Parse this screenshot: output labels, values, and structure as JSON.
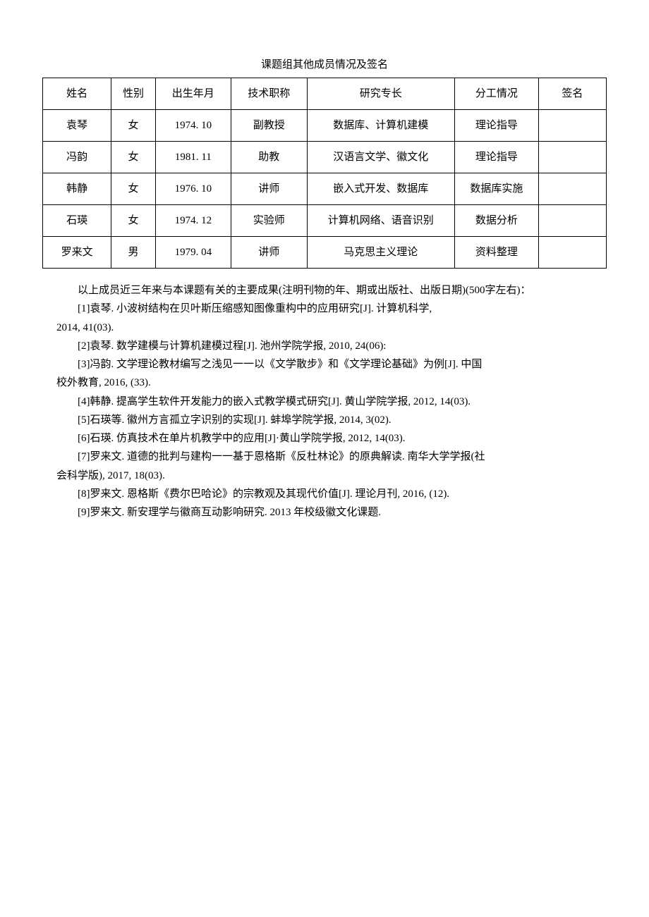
{
  "title": "课题组其他成员情况及签名",
  "table": {
    "headers": [
      "姓名",
      "性别",
      "出生年月",
      "技术职称",
      "研究专长",
      "分工情况",
      "签名"
    ],
    "rows": [
      [
        "袁琴",
        "女",
        "1974. 10",
        "副教授",
        "数据库、计算机建模",
        "理论指导",
        ""
      ],
      [
        "冯韵",
        "女",
        "1981. 11",
        "助教",
        "汉语言文学、徽文化",
        "理论指导",
        ""
      ],
      [
        "韩静",
        "女",
        "1976. 10",
        "讲师",
        "嵌入式开发、数据库",
        "数据库实施",
        ""
      ],
      [
        "石瑛",
        "女",
        "1974. 12",
        "实验师",
        "计算机网络、语音识别",
        "数据分析",
        ""
      ],
      [
        "罗来文",
        "男",
        "1979. 04",
        "讲师",
        "马克思主义理论",
        "资料整理",
        ""
      ]
    ]
  },
  "intro": "以上成员近三年来与本课题有关的主要成果(注明刊物的年、期或出版社、出版日期)(500字左右)：",
  "refs": [
    {
      "indented": true,
      "text": "[1]袁琴. 小波树结构在贝叶斯压缩感知图像重构中的应用研究[J]. 计算机科学,"
    },
    {
      "indented": false,
      "text": "2014, 41(03)."
    },
    {
      "indented": true,
      "text": "[2]袁琴. 数学建模与计算机建模过程[J]. 池州学院学报, 2010, 24(06):"
    },
    {
      "indented": true,
      "text": "[3]冯韵. 文学理论教材编写之浅见一一以《文学散步》和《文学理论基础》为例[J]. 中国"
    },
    {
      "indented": false,
      "text": "校外教育, 2016, (33)."
    },
    {
      "indented": true,
      "text": "[4]韩静. 提高学生软件开发能力的嵌入式教学模式研究[J]. 黄山学院学报, 2012, 14(03)."
    },
    {
      "indented": true,
      "text": "[5]石瑛等. 徽州方言孤立字识别的实现[J]. 蚌埠学院学报, 2014, 3(02)."
    },
    {
      "indented": true,
      "text": "[6]石瑛. 仿真技术在单片机教学中的应用[J]·黄山学院学报, 2012, 14(03)."
    },
    {
      "indented": true,
      "text": "[7]罗来文. 道德的批判与建构一一基于恩格斯《反杜林论》的原典解读. 南华大学学报(社"
    },
    {
      "indented": false,
      "text": "会科学版), 2017, 18(03)."
    },
    {
      "indented": true,
      "text": "[8]罗来文. 恩格斯《费尔巴哈论》的宗教观及其现代价值[J]. 理论月刊, 2016, (12)."
    },
    {
      "indented": true,
      "text": "[9]罗来文. 新安理学与徽商互动影响研究. 2013 年校级徽文化课题."
    }
  ],
  "colors": {
    "text": "#000000",
    "border": "#000000",
    "background": "#ffffff"
  }
}
